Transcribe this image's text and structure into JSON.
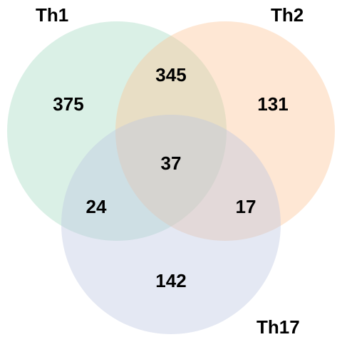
{
  "sets": [
    {
      "key": "th1",
      "label": "Th1",
      "color": "#a2d9c1"
    },
    {
      "key": "th2",
      "label": "Th2",
      "color": "#fcc294"
    },
    {
      "key": "th17",
      "label": "Th17",
      "color": "#bcc6e0"
    }
  ],
  "regions": {
    "th1_only": "375",
    "th2_only": "131",
    "th17_only": "142",
    "th1_th2": "345",
    "th1_th17": "24",
    "th2_th17": "17",
    "all": "37"
  }
}
